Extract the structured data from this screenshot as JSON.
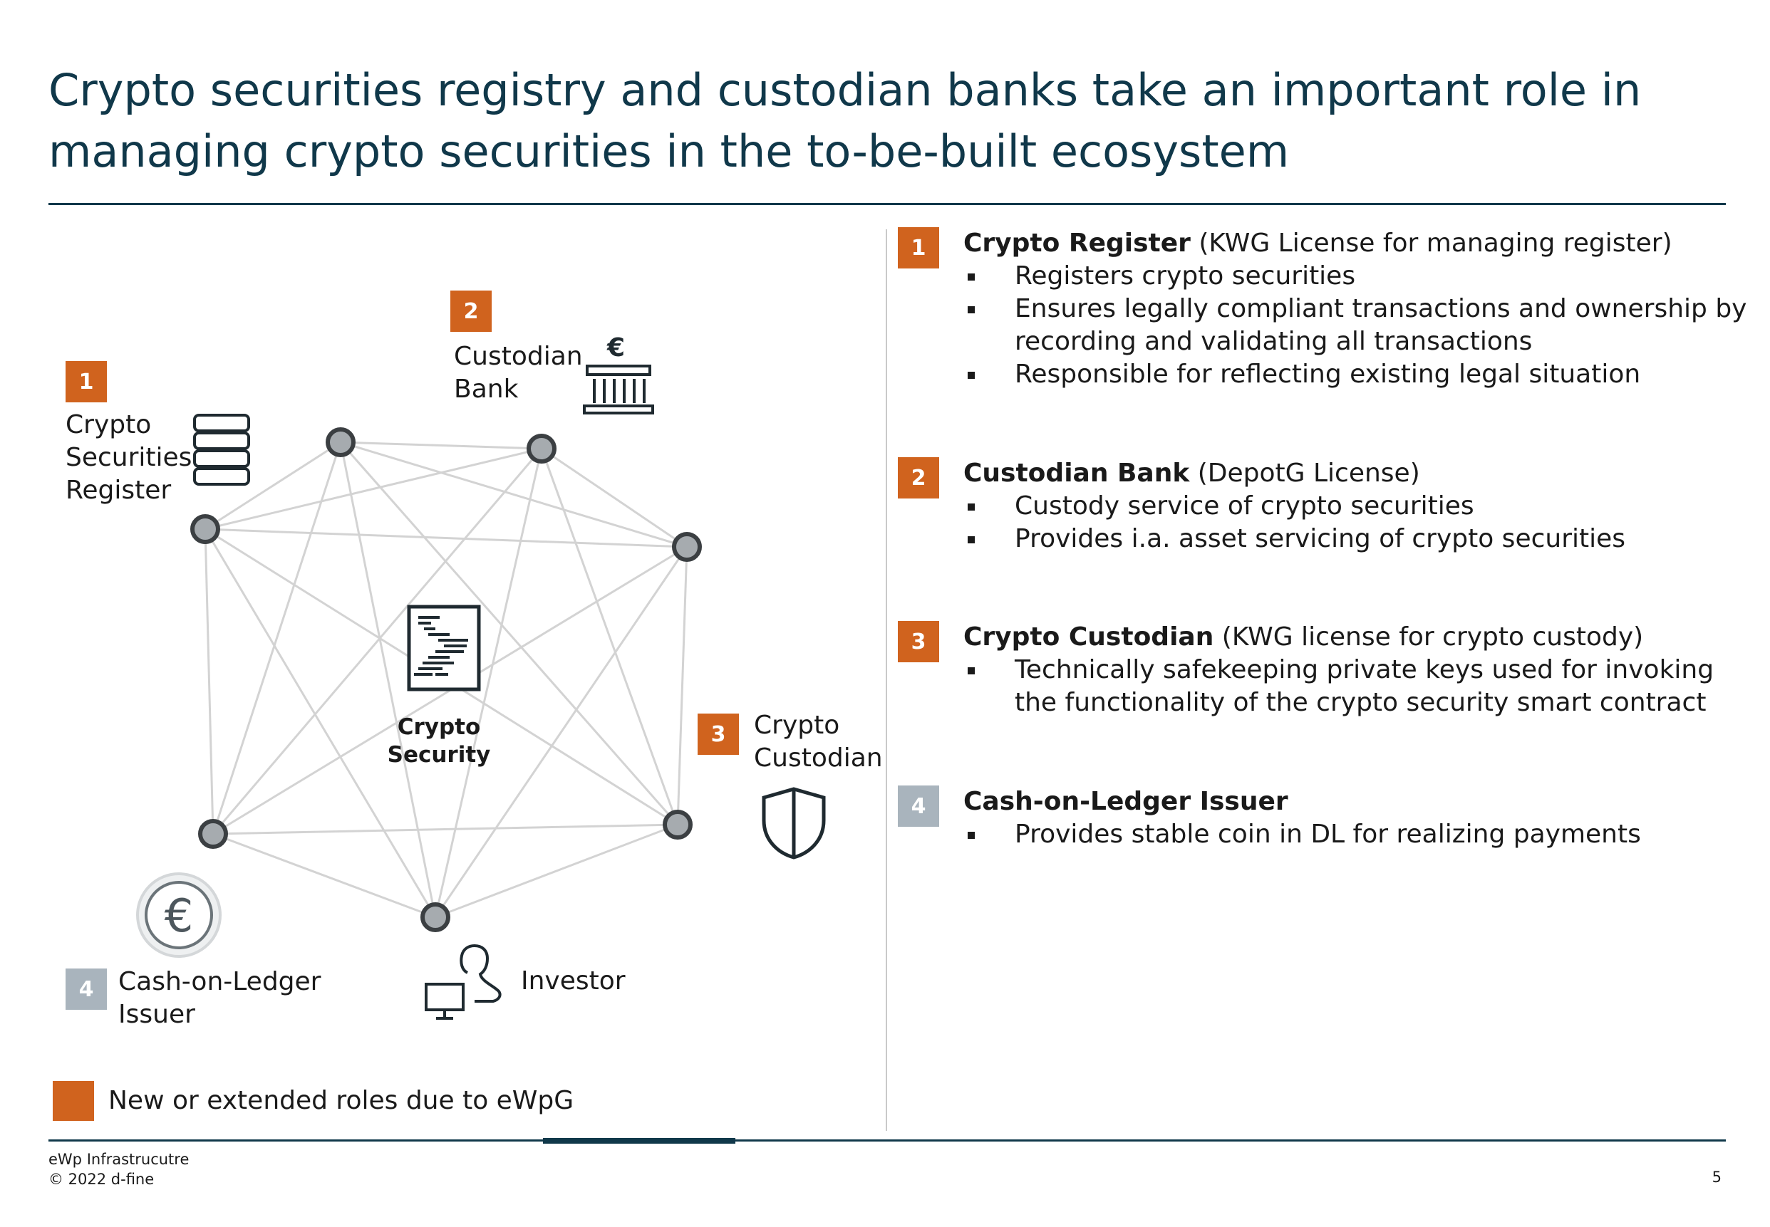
{
  "title_lines": [
    "Crypto securities registry and custodian banks take an important role in",
    "managing crypto securities in the to-be-built ecosystem"
  ],
  "diagram": {
    "nodes": [
      {
        "number": "1",
        "badge": "orange",
        "label_lines": [
          "Crypto",
          "Securities",
          "Register"
        ],
        "icon": "database-icon"
      },
      {
        "number": "2",
        "badge": "orange",
        "label_lines": [
          "Custodian",
          "Bank"
        ],
        "icon": "bank-icon"
      },
      {
        "number": "3",
        "badge": "orange",
        "label_lines": [
          "Crypto",
          "Custodian"
        ],
        "icon": "shield-icon"
      },
      {
        "number": "4",
        "badge": "gray",
        "label_lines": [
          "Cash-on-Ledger",
          "Issuer"
        ],
        "icon": "euro-coin-icon"
      },
      {
        "number": "",
        "badge": "",
        "label_lines": [
          "Investor"
        ],
        "icon": "investor-computer-icon"
      }
    ],
    "center": {
      "label_lines": [
        "Crypto",
        "Security"
      ],
      "icon": "smart-contract-document-icon"
    },
    "edge_color": "#d3d3d3",
    "node_color": "#a6abaf",
    "node_stroke": "#3b3f42"
  },
  "legend": {
    "text": "New or extended roles due to eWpG",
    "color": "#d0631e"
  },
  "roles": [
    {
      "number": "1",
      "badge": "orange",
      "name": "Crypto Register",
      "qualifier": " (KWG License for managing register)",
      "bullets": [
        "Registers crypto securities",
        "Ensures legally compliant transactions and ownership by recording and validating all transactions",
        "Responsible for reflecting existing legal situation"
      ]
    },
    {
      "number": "2",
      "badge": "orange",
      "name": "Custodian Bank",
      "qualifier": " (DepotG License)",
      "bullets": [
        "Custody service of crypto securities",
        "Provides i.a. asset servicing of crypto securities"
      ]
    },
    {
      "number": "3",
      "badge": "orange",
      "name": "Crypto Custodian",
      "qualifier": " (KWG license for crypto custody)",
      "bullets": [
        "Technically safekeeping private keys used for invoking the functionality of the crypto security smart contract"
      ]
    },
    {
      "number": "4",
      "badge": "gray",
      "name": "Cash-on-Ledger Issuer",
      "qualifier": "",
      "bullets": [
        "Provides stable coin in DL for realizing payments"
      ]
    }
  ],
  "footer": {
    "line1": "eWp Infrastrucutre",
    "line2": "© 2022 d-fine",
    "page": "5"
  },
  "colors": {
    "accent": "#d0631e",
    "navy": "#10384a",
    "gray_badge": "#a9b4bd"
  }
}
